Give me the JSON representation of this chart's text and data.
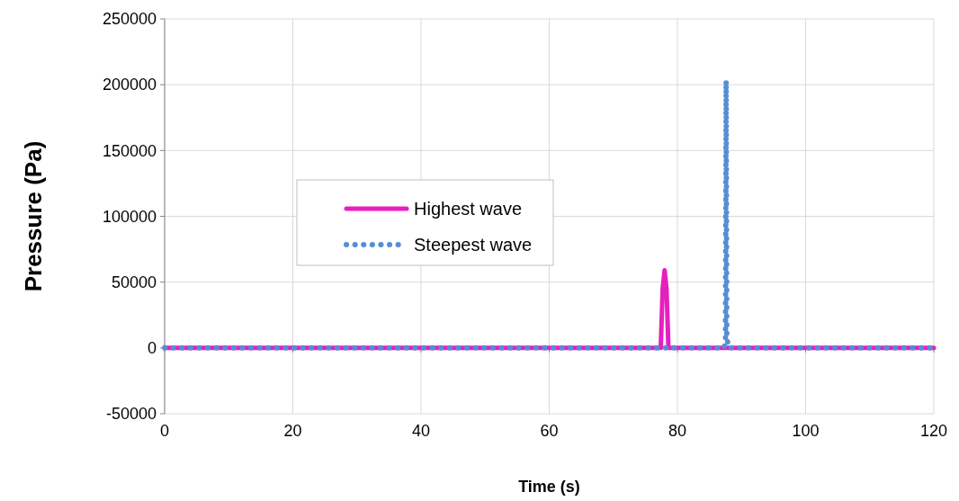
{
  "chart_data": {
    "type": "line",
    "xlabel": "Time (s)",
    "ylabel": "Pressure (Pa)",
    "xlim": [
      0,
      120
    ],
    "xticks": [
      0,
      20,
      40,
      60,
      80,
      100,
      120
    ],
    "ylim": [
      -50000,
      250000
    ],
    "yticks": [
      -50000,
      0,
      50000,
      100000,
      150000,
      200000,
      250000
    ],
    "grid": true,
    "legend": "left",
    "series": [
      {
        "name": "Highest wave",
        "color": "#e620be",
        "line_style": "solid",
        "x": [
          0,
          77.4,
          77.7,
          78.0,
          78.3,
          78.6,
          120
        ],
        "values": [
          0,
          0,
          45000,
          59000,
          45000,
          0,
          0
        ]
      },
      {
        "name": "Steepest wave",
        "color": "#558ed5",
        "line_style": "dotted",
        "x": [
          0,
          87.3,
          87.5,
          87.6,
          87.7,
          88.0,
          120
        ],
        "values": [
          0,
          0,
          8000,
          203000,
          8000,
          0,
          0
        ]
      }
    ]
  }
}
